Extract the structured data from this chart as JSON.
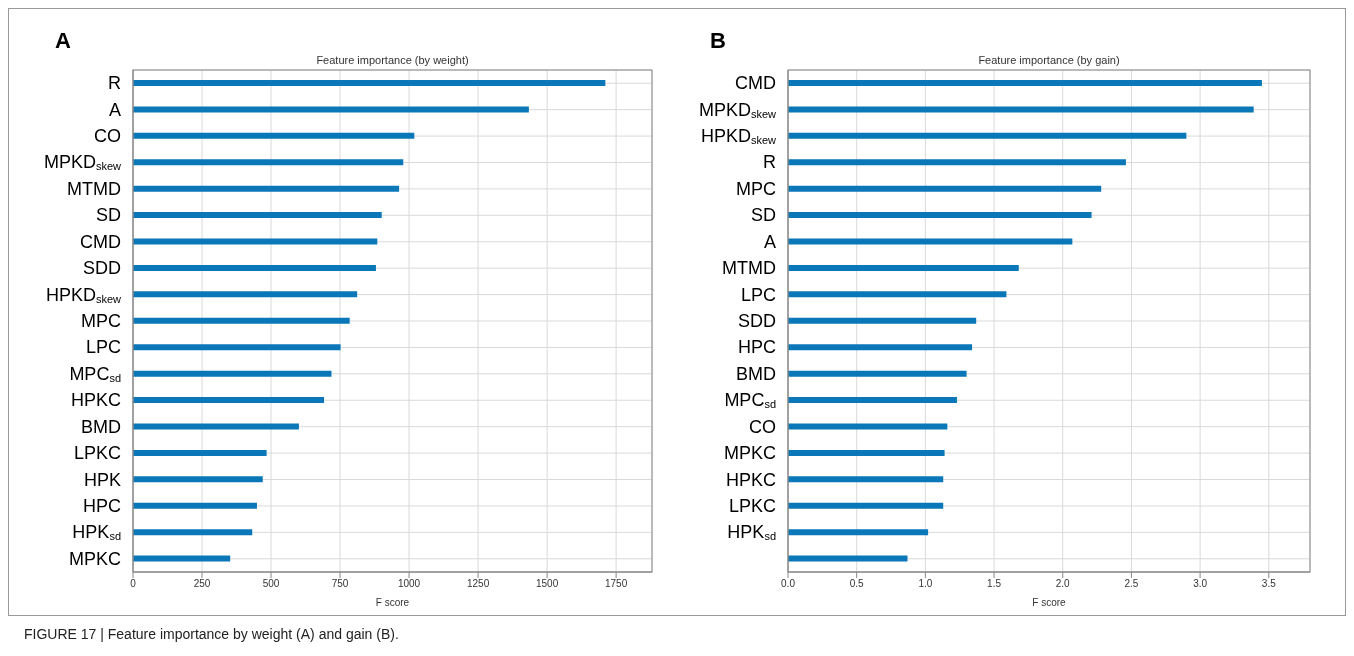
{
  "chart_data": [
    {
      "type": "bar",
      "orientation": "horizontal",
      "title": "Feature importance (by weight)",
      "xlabel": "F score",
      "annotations": [
        "A",
        "FIGURE 17 | Feature importance by weight (A) and gain (B)."
      ],
      "categories": [
        "R",
        "A",
        "CO",
        "MPKD$_{skew}$",
        "MTMD",
        "SD",
        "CMD",
        "SDD",
        "HPKD$_{skew}$",
        "MPC",
        "LPC",
        "MPC$_{sd}$",
        "HPKC",
        "BMD",
        "LPKC",
        "HPK",
        "HPC",
        "HPK$_{sd}$",
        "MPKC"
      ],
      "values": [
        1711,
        1434,
        1019,
        979,
        964,
        901,
        885,
        880,
        812,
        785,
        752,
        719,
        692,
        601,
        484,
        470,
        449,
        432,
        352
      ],
      "color": "#0a77b8",
      "xlim": [
        0,
        1880
      ],
      "xticks": [
        0,
        250,
        500,
        750,
        1000,
        1250,
        1500,
        1750
      ],
      "grid": true
    },
    {
      "type": "bar",
      "orientation": "horizontal",
      "title": "Feature importance (by gain)",
      "xlabel": "F score",
      "annotations": [
        "B"
      ],
      "categories": [
        "CMD",
        "MPKD$_{skew}$",
        "HPKD$_{skew}$",
        "R",
        "MPC",
        "SD",
        "A",
        "MTMD",
        "LPC",
        "SDD",
        "HPC",
        "BMD",
        "MPC$_{sd}$",
        "CO",
        "MPKC",
        "HPKC",
        "LPKC",
        "HPK$_{sd}$",
        null
      ],
      "values": [
        3.45,
        3.39,
        2.9,
        2.46,
        2.28,
        2.21,
        2.07,
        1.68,
        1.59,
        1.37,
        1.34,
        1.3,
        1.23,
        1.16,
        1.14,
        1.13,
        1.13,
        1.02,
        0.87
      ],
      "color": "#0a77b8",
      "xlim": [
        0,
        3.8
      ],
      "xticks": [
        {
          "value": 0,
          "label": "0.0"
        },
        0.5,
        {
          "value": 1,
          "label": "1.0"
        },
        1.5,
        {
          "value": 2,
          "label": "2.0"
        },
        2.5,
        {
          "value": 3,
          "label": "3.0"
        },
        3.5
      ],
      "grid": true
    }
  ]
}
